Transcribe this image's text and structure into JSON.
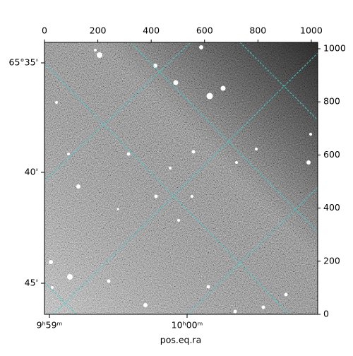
{
  "chart_data": {
    "type": "image",
    "xlabel": "pos.eq.ra",
    "xlim": [
      0,
      1024
    ],
    "xticks": [
      0,
      200,
      400,
      600,
      800,
      1000
    ],
    "ylim": [
      0,
      1024
    ],
    "yticks": [
      0,
      200,
      400,
      600,
      800,
      1000
    ],
    "ra_ticks": [
      "9ʰ59ᵐ",
      "10ʰ00ᵐ"
    ],
    "dec_ticks": [
      "65°35'",
      "40'",
      "45'"
    ]
  }
}
